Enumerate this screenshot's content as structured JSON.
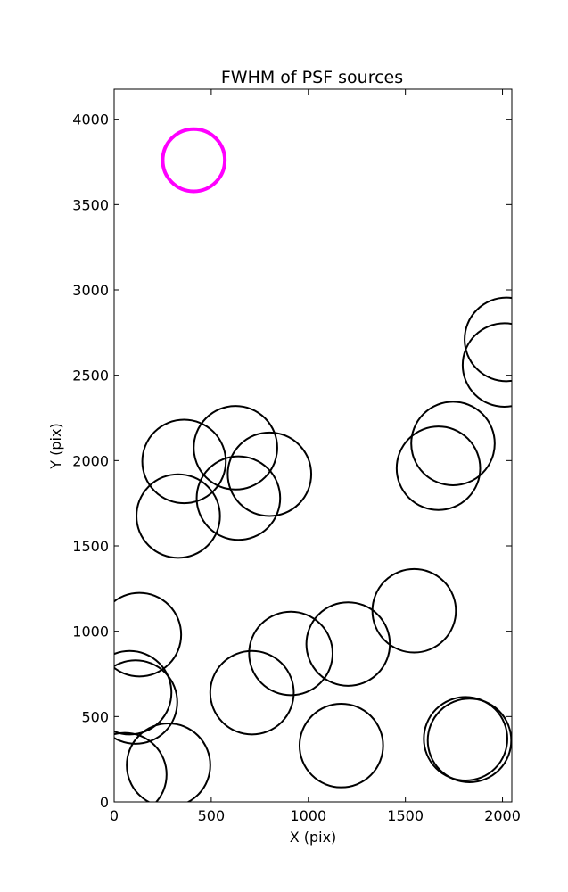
{
  "chart_data": {
    "type": "scatter",
    "title": "FWHM of PSF sources",
    "xlabel": "X (pix)",
    "ylabel": "Y (pix)",
    "xlim": [
      0,
      2048
    ],
    "ylim": [
      0,
      4176
    ],
    "xticks": [
      0,
      500,
      1000,
      1500,
      2000
    ],
    "yticks": [
      0,
      500,
      1000,
      1500,
      2000,
      2500,
      3000,
      3500,
      4000
    ],
    "grid": false,
    "marker": "open-circle",
    "series": [
      {
        "color": "#000000",
        "points": [
          {
            "x": 2020,
            "y": 2710,
            "r": 215
          },
          {
            "x": 2010,
            "y": 2560,
            "r": 215
          },
          {
            "x": 1745,
            "y": 2100,
            "r": 215
          },
          {
            "x": 1670,
            "y": 1955,
            "r": 215
          },
          {
            "x": 360,
            "y": 1995,
            "r": 215
          },
          {
            "x": 625,
            "y": 2075,
            "r": 215
          },
          {
            "x": 800,
            "y": 1920,
            "r": 215
          },
          {
            "x": 640,
            "y": 1780,
            "r": 215
          },
          {
            "x": 330,
            "y": 1675,
            "r": 215
          },
          {
            "x": 1545,
            "y": 1120,
            "r": 215
          },
          {
            "x": 130,
            "y": 980,
            "r": 215
          },
          {
            "x": 910,
            "y": 870,
            "r": 215
          },
          {
            "x": 1205,
            "y": 925,
            "r": 215
          },
          {
            "x": 80,
            "y": 640,
            "r": 215
          },
          {
            "x": 110,
            "y": 585,
            "r": 215
          },
          {
            "x": 710,
            "y": 640,
            "r": 215
          },
          {
            "x": 1810,
            "y": 370,
            "r": 215
          },
          {
            "x": 1830,
            "y": 360,
            "r": 215
          },
          {
            "x": 1170,
            "y": 330,
            "r": 215
          },
          {
            "x": 280,
            "y": 215,
            "r": 215
          },
          {
            "x": 55,
            "y": 160,
            "r": 215
          }
        ]
      },
      {
        "color": "#ff00ff",
        "points": [
          {
            "x": 410,
            "y": 3760,
            "r": 160
          }
        ]
      }
    ]
  }
}
